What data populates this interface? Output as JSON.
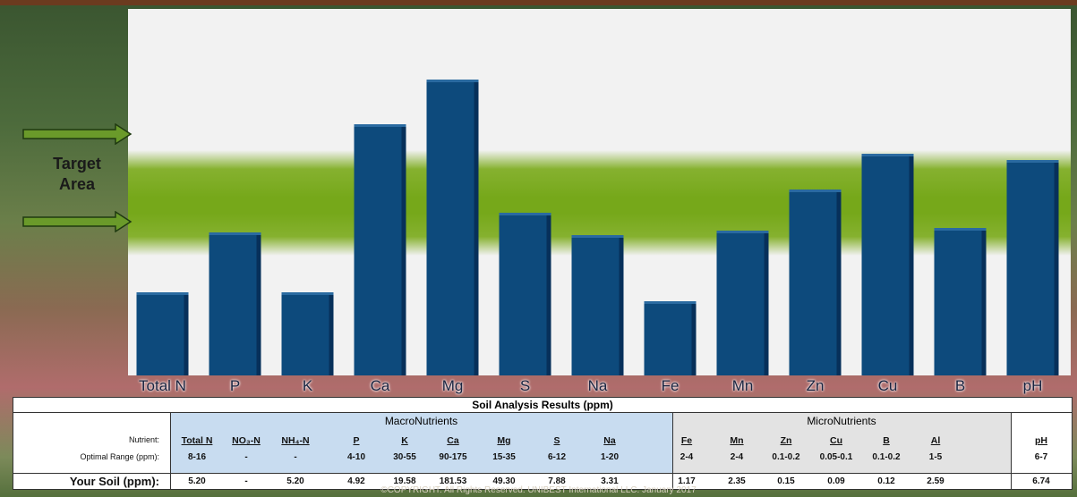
{
  "chart_data": {
    "type": "bar",
    "categories": [
      "Total N",
      "P",
      "K",
      "Ca",
      "Mg",
      "S",
      "Na",
      "Fe",
      "Mn",
      "Zn",
      "Cu",
      "B",
      "pH"
    ],
    "values": [
      93,
      160,
      93,
      281,
      331,
      182,
      157,
      83,
      162,
      208,
      248,
      165,
      241
    ],
    "ylim": [
      0,
      410
    ],
    "target_band": [
      134,
      252
    ],
    "bar_color": "#0d4a7c",
    "band_color": "#76a81a"
  },
  "target_label_line1": "Target",
  "target_label_line2": "Area",
  "table": {
    "title": "Soil Analysis Results (ppm)",
    "macro_label": "MacroNutrients",
    "micro_label": "MicroNutrients",
    "row_labels": {
      "nutrient": "Nutrient:",
      "optimal": "Optimal Range (ppm):",
      "soil": "Your Soil (ppm):"
    },
    "columns": [
      {
        "name": "Total N",
        "range": "8-16",
        "soil": "5.20"
      },
      {
        "name": "NO₃-N",
        "range": "-",
        "soil": "-"
      },
      {
        "name": "NH₄-N",
        "range": "-",
        "soil": "5.20"
      },
      {
        "name": "P",
        "range": "4-10",
        "soil": "4.92"
      },
      {
        "name": "K",
        "range": "30-55",
        "soil": "19.58"
      },
      {
        "name": "Ca",
        "range": "90-175",
        "soil": "181.53"
      },
      {
        "name": "Mg",
        "range": "15-35",
        "soil": "49.30"
      },
      {
        "name": "S",
        "range": "6-12",
        "soil": "7.88"
      },
      {
        "name": "Na",
        "range": "1-20",
        "soil": "3.31"
      },
      {
        "name": "Fe",
        "range": "2-4",
        "soil": "1.17"
      },
      {
        "name": "Mn",
        "range": "2-4",
        "soil": "2.35"
      },
      {
        "name": "Zn",
        "range": "0.1-0.2",
        "soil": "0.15"
      },
      {
        "name": "Cu",
        "range": "0.05-0.1",
        "soil": "0.09"
      },
      {
        "name": "B",
        "range": "0.1-0.2",
        "soil": "0.12"
      },
      {
        "name": "Al",
        "range": "1-5",
        "soil": "2.59"
      },
      {
        "name": "pH",
        "range": "6-7",
        "soil": "6.74"
      }
    ]
  },
  "copyright": "©COPYRIGHT. All Rights Reserved. UNIBEST International LLC. January 2017"
}
